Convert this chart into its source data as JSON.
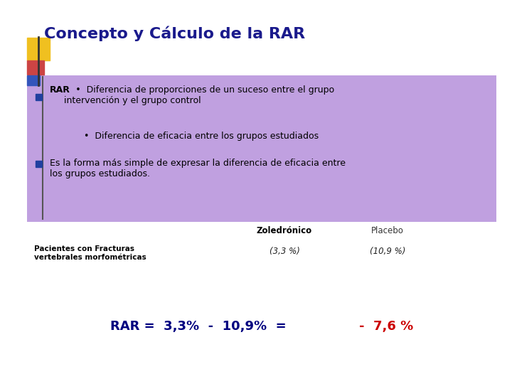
{
  "title": "Concepto y Cálculo de la RAR",
  "title_color": "#1a1a8c",
  "title_fontsize": 16,
  "bg_color": "#ffffff",
  "box_color": "#c0a0e0",
  "bullet1_bold": "RAR",
  "bullet1_rest": " :  •  Diferencia de proporciones de un suceso entre el grupo\nintervención y el grupo control",
  "sub_bullet": "  •  Diferencia de eficacia entre los grupos estudiados",
  "bullet2_text": "Es la forma más simple de expresar la diferencia de eficacia entre\nlos grupos estudiados.",
  "col1_header": "Zoledrónico",
  "col2_header": "Placebo",
  "row_label": "Pacientes con Fracturas\nvertebrales morfométricas",
  "val1": "(3,3 %)",
  "val2": "(10,9 %)",
  "rar_black": "RAR =  3,3%  -  10,9%  =  ",
  "rar_red": "-  7,6 %",
  "square_gold": "#f0c020",
  "square_pink": "#cc4444",
  "square_blue": "#3355bb",
  "bullet_color": "#2040a0",
  "line_color": "#555555"
}
